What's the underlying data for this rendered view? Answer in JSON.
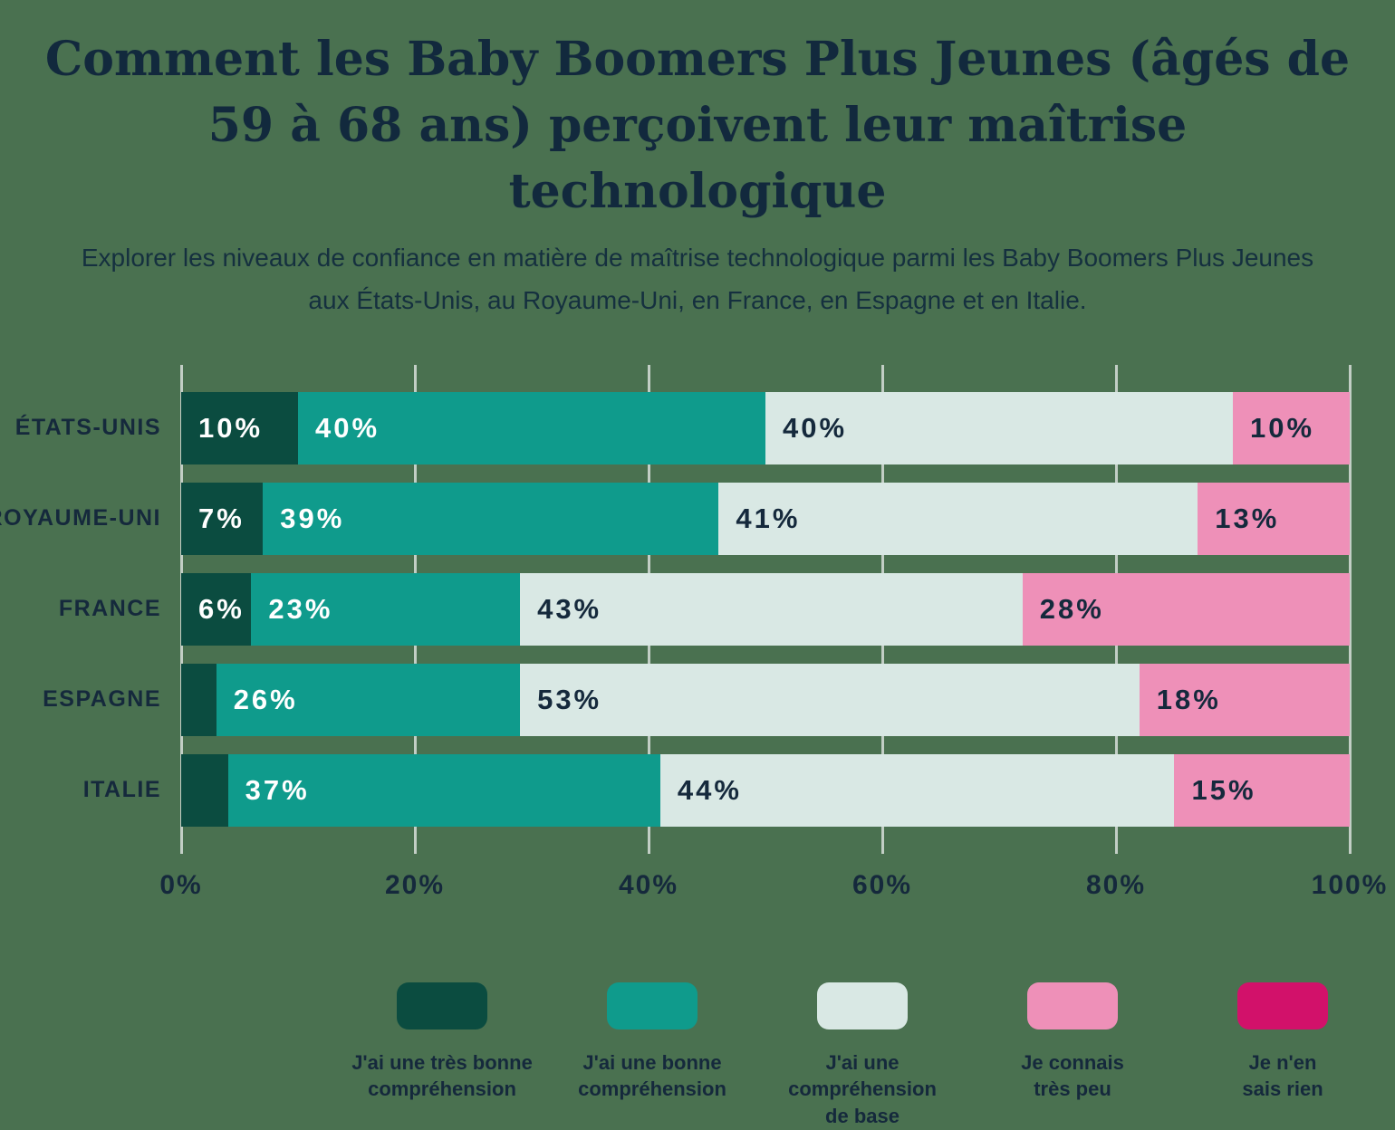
{
  "header": {
    "title": "Comment les Baby Boomers Plus Jeunes (âgés de 59 à 68 ans) perçoivent leur maîtrise technologique",
    "subtitle": "Explorer les niveaux de confiance en matière de maîtrise technologique parmi les Baby Boomers Plus Jeunes aux États-Unis, au Royaume-Uni, en France, en Espagne et en Italie."
  },
  "chart_data": {
    "type": "bar",
    "orientation": "horizontal",
    "stacked": true,
    "categories": [
      "ÉTATS-UNIS",
      "ROYAUME-UNI",
      "FRANCE",
      "ESPAGNE",
      "ITALIE"
    ],
    "series": [
      {
        "name": "J'ai une très bonne compréhension",
        "legend_lines": [
          "J'ai une très bonne",
          "compréhension"
        ],
        "color": "#0b4c40",
        "label_color": "#ffffff",
        "values": [
          10,
          7,
          6,
          3,
          4
        ]
      },
      {
        "name": "J'ai une bonne compréhension",
        "legend_lines": [
          "J'ai une bonne",
          "compréhension"
        ],
        "color": "#0f9b8c",
        "label_color": "#ffffff",
        "values": [
          40,
          39,
          23,
          26,
          37
        ]
      },
      {
        "name": "J'ai une compréhension de base",
        "legend_lines": [
          "J'ai une compréhension",
          "de base"
        ],
        "color": "#d9e8e4",
        "label_color": "#15293c",
        "values": [
          40,
          41,
          43,
          53,
          44
        ]
      },
      {
        "name": "Je connais très peu",
        "legend_lines": [
          "Je connais",
          "très peu"
        ],
        "color": "#ee90b8",
        "label_color": "#15293c",
        "values": [
          10,
          13,
          28,
          18,
          15
        ]
      },
      {
        "name": "Je n'en sais rien",
        "legend_lines": [
          "Je n'en",
          "sais rien"
        ],
        "color": "#d2116a",
        "label_color": "#ffffff",
        "values": [
          0,
          0,
          0,
          0,
          0
        ]
      }
    ],
    "x_ticks": [
      "0%",
      "20%",
      "40%",
      "60%",
      "80%",
      "100%"
    ],
    "xlim": [
      0,
      100
    ],
    "grid": true,
    "label_min_show": 5,
    "legend_position": "bottom"
  },
  "colors": {
    "background": "#4a7150",
    "gridline": "#c2cec5",
    "text": "#15293c",
    "title": "#12293d"
  }
}
